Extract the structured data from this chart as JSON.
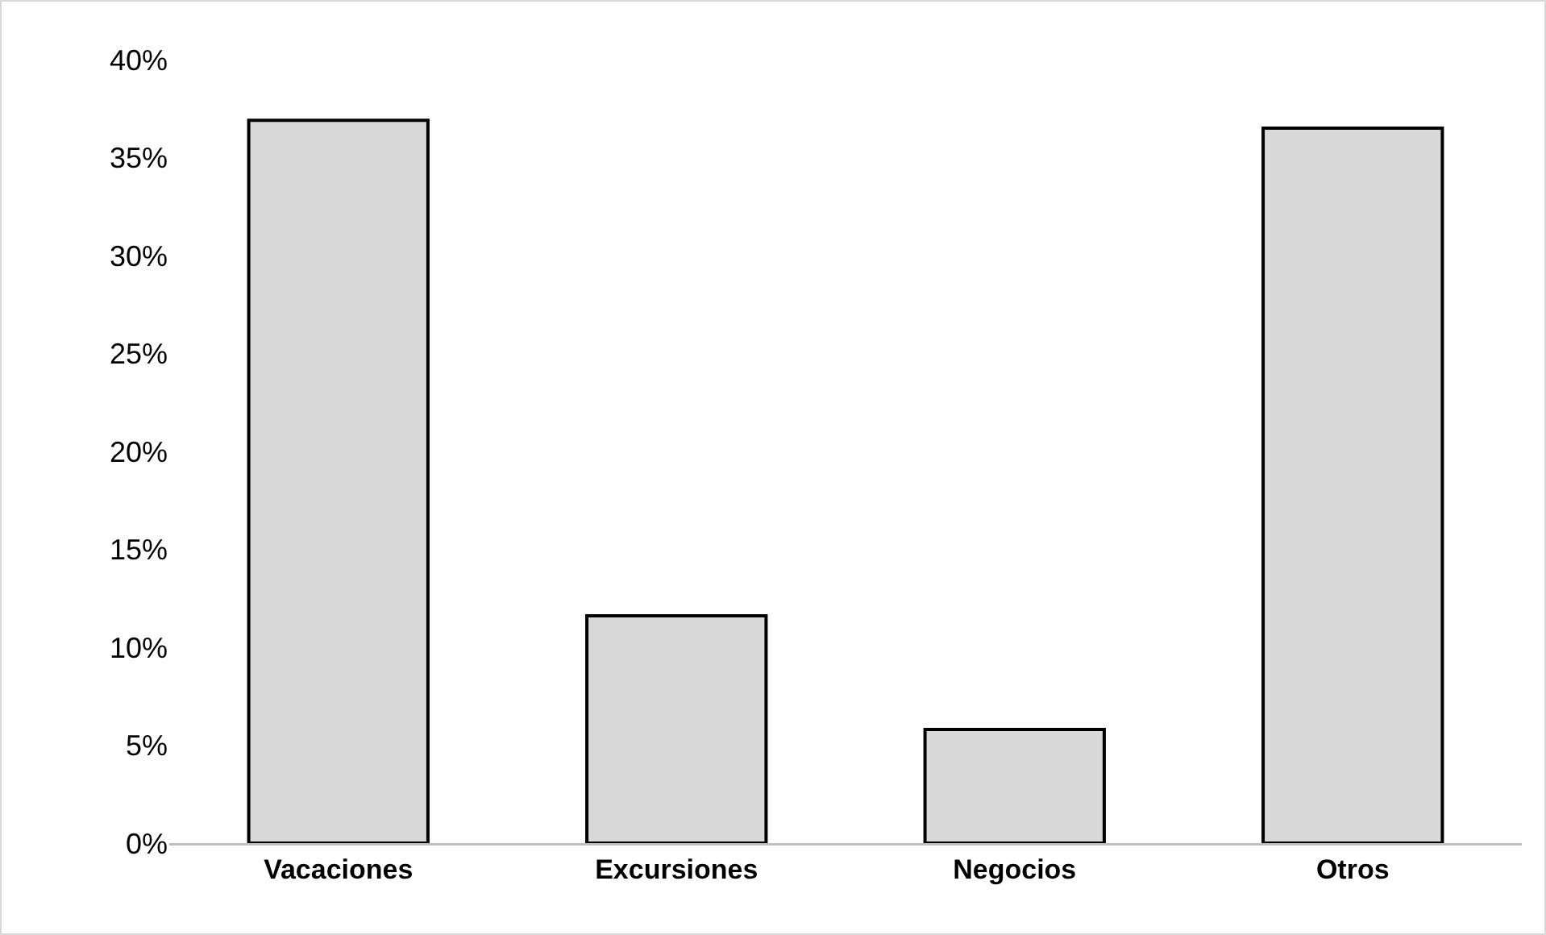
{
  "chart_data": {
    "type": "bar",
    "categories": [
      "Vacaciones",
      "Excursiones",
      "Negocios",
      "Otros"
    ],
    "values": [
      36.9,
      11.6,
      5.8,
      36.5
    ],
    "color": "#d9d9d9",
    "ylim": [
      0,
      40
    ],
    "yticks": [
      {
        "value": 0,
        "label": "0%"
      },
      {
        "value": 5,
        "label": "5%"
      },
      {
        "value": 10,
        "label": "10%"
      },
      {
        "value": 15,
        "label": "15%"
      },
      {
        "value": 20,
        "label": "20%"
      },
      {
        "value": 25,
        "label": "25%"
      },
      {
        "value": 30,
        "label": "30%"
      },
      {
        "value": 35,
        "label": "35%"
      },
      {
        "value": 40,
        "label": "40%"
      }
    ],
    "grid": false,
    "legend": false
  }
}
